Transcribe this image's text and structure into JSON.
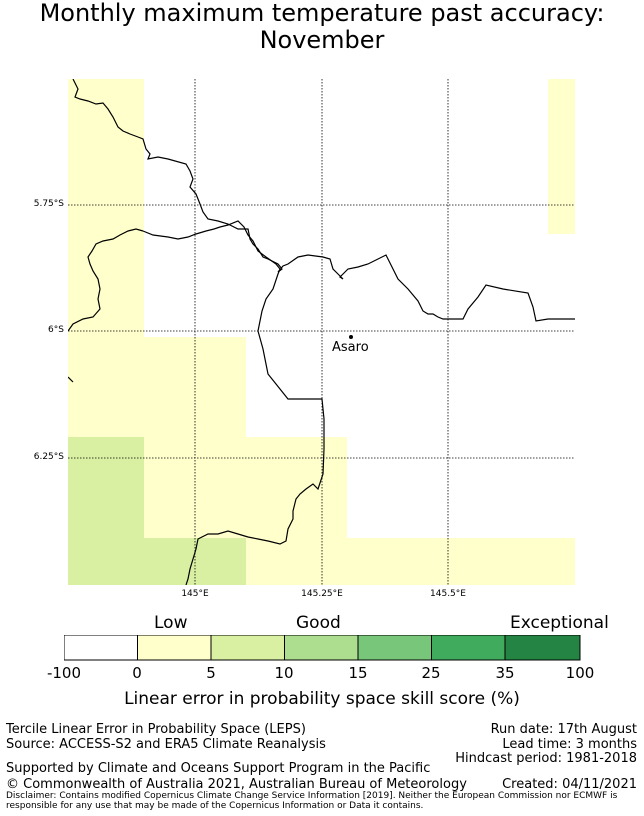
{
  "title": {
    "line1": "Monthly maximum temperature past accuracy:",
    "line2": "November"
  },
  "map": {
    "lat_labels": [
      "5.75°S",
      "6°S",
      "6.25°S"
    ],
    "lon_labels": [
      "145°E",
      "145.25°E",
      "145.5°E"
    ],
    "place": "Asaro",
    "colors": {
      "light_yellow": "#ffffcc",
      "light_green": "#d9f0a3",
      "border": "#000000"
    }
  },
  "colorbar": {
    "category_low": "Low",
    "category_good": "Good",
    "category_exceptional": "Exceptional",
    "ticks": [
      "-100",
      "0",
      "5",
      "10",
      "15",
      "25",
      "35",
      "100"
    ],
    "colors": [
      "#ffffff",
      "#ffffcc",
      "#d9f0a3",
      "#addd8e",
      "#78c679",
      "#41ab5d",
      "#238443"
    ],
    "label": "Linear error in probability space skill score (%)"
  },
  "footer": {
    "method": "Tercile Linear Error in Probability Space (LEPS)",
    "source": "Source: ACCESS-S2 and ERA5 Climate Reanalysis",
    "support": "Supported by Climate and Oceans Support Program in the Pacific",
    "copyright": "© Commonwealth of Australia 2021, Australian Bureau of Meteorology",
    "run_date": "Run date: 17th August",
    "lead_time": "Lead time: 3 months",
    "hindcast": "Hindcast period: 1981-2018",
    "created": "Created: 04/11/2021",
    "disclaimer": "Disclaimer: Contains modified Copernicus Climate Change Service Information [2019]. Neither the European Commission nor ECMWF is responsible for any use that may be made of the Copernicus Information or Data it contains."
  }
}
